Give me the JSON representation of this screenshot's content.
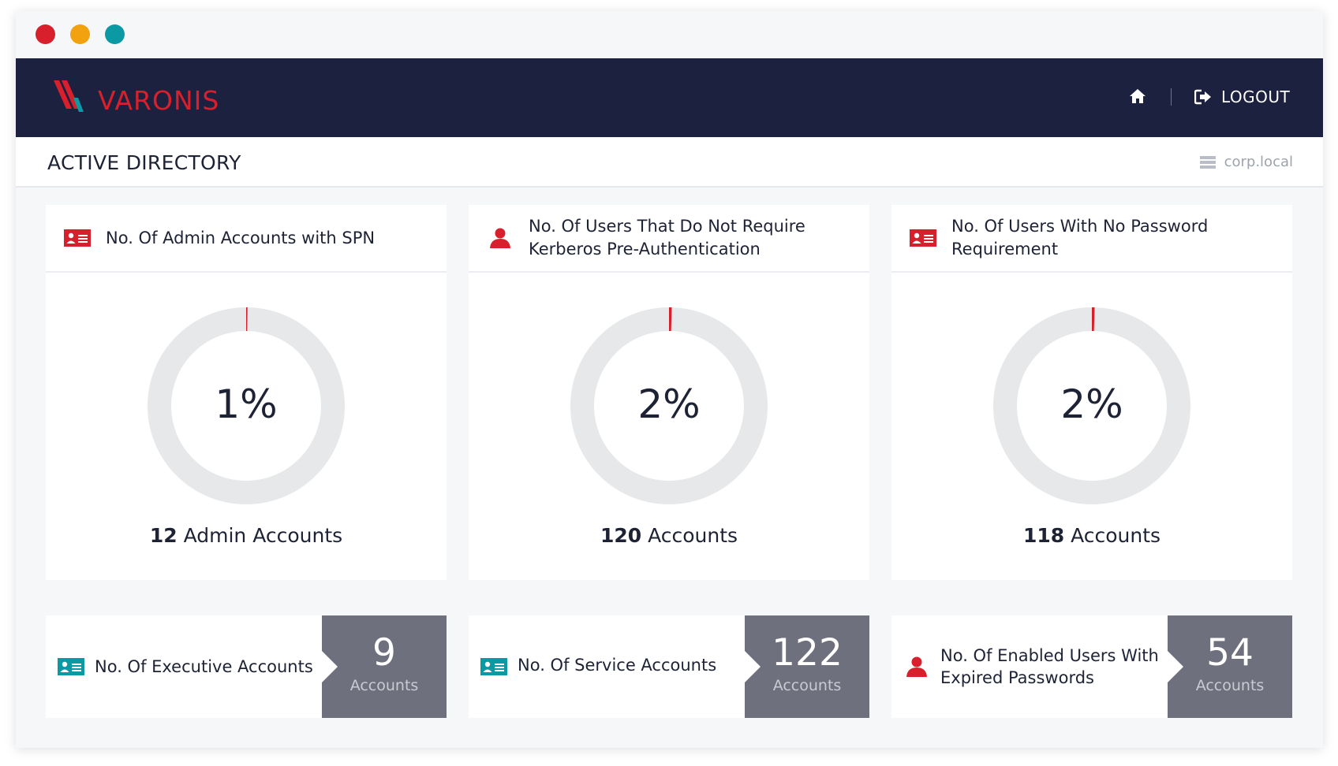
{
  "window": {
    "dot_colors": [
      "#d7202c",
      "#f2a20f",
      "#0b9aa3"
    ]
  },
  "nav": {
    "logo_text": "VARONIS",
    "logo_colors": {
      "stripe_red": "#d7202c",
      "stripe_teal": "#0b9aa3",
      "text": "#d7202c"
    },
    "home_icon": "home-icon",
    "logout_icon": "logout-icon",
    "logout_label": "LOGOUT"
  },
  "header": {
    "title": "ACTIVE DIRECTORY",
    "domain_icon": "server-icon",
    "domain": "corp.local"
  },
  "colors": {
    "accent_red": "#d7202c",
    "teal": "#0b9aa3",
    "navy": "#1d2140",
    "stat_box": "#6f707e",
    "donut_track": "#e6e8ea"
  },
  "cards": [
    {
      "icon": "id-card-icon",
      "icon_color": "#d7202c",
      "title": "No. Of Admin Accounts with SPN",
      "percent_value": 1,
      "percent_label": "1%",
      "count_number": "12",
      "count_label": "Admin Accounts"
    },
    {
      "icon": "user-icon",
      "icon_color": "#d7202c",
      "title": "No. Of Users That Do Not Require Kerberos Pre-Authentication",
      "percent_value": 2,
      "percent_label": "2%",
      "count_number": "120",
      "count_label": "Accounts"
    },
    {
      "icon": "id-card-icon",
      "icon_color": "#d7202c",
      "title": "No. Of Users With No Password Requirement",
      "percent_value": 2,
      "percent_label": "2%",
      "count_number": "118",
      "count_label": "Accounts"
    }
  ],
  "stats": [
    {
      "icon": "id-card-icon",
      "icon_color": "#0b9aa3",
      "label": "No. Of Executive Accounts",
      "value": "9",
      "unit": "Accounts"
    },
    {
      "icon": "id-card-icon",
      "icon_color": "#0b9aa3",
      "label": "No. Of Service Accounts",
      "value": "122",
      "unit": "Accounts"
    },
    {
      "icon": "user-icon",
      "icon_color": "#d7202c",
      "label": "No. Of Enabled Users With Expired Passwords",
      "value": "54",
      "unit": "Accounts"
    }
  ]
}
